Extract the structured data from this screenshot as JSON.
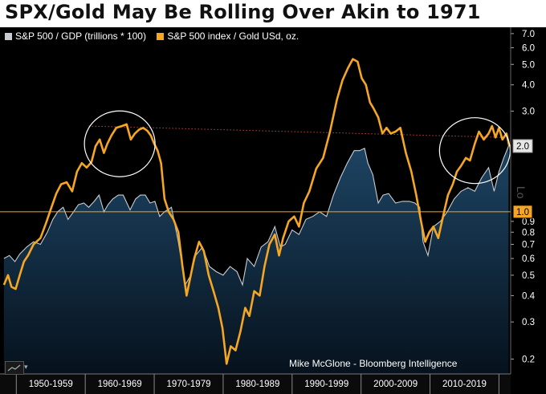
{
  "header": {
    "title": "SPX/Gold May Be Rolling Over Akin to 1971"
  },
  "watermark": "Mike McGlone - Bloomberg Intelligence",
  "side_label": "Lo",
  "icons": {
    "chart_type": "line-chart-icon",
    "dropdown": "chevron-down-icon",
    "caret_glyph": "▾"
  },
  "colors": {
    "background": "#000000",
    "area_top": "#1d4463",
    "area_bottom": "#06121d",
    "gold_line": "#f5a623",
    "gdp_line": "#c8ccd0",
    "reference_line": "#f5a623",
    "trend_line": "#c0453c",
    "circle": "#ffffff"
  },
  "chart_data": {
    "type": "line",
    "title": "SPX/Gold May Be Rolling Over Akin to 1971",
    "scale": "log",
    "ylim": [
      0.17,
      7.5
    ],
    "xlim": [
      1947.6,
      2021.2
    ],
    "y_ticks": [
      "7.0",
      "6.0",
      "5.0",
      "4.0",
      "3.0",
      "2.0",
      "1.0",
      "0.9",
      "0.8",
      "0.7",
      "0.6",
      "0.5",
      "0.4",
      "0.3",
      "0.2"
    ],
    "y_tick_values": [
      7,
      6,
      5,
      4,
      3,
      2,
      1,
      0.9,
      0.8,
      0.7,
      0.6,
      0.5,
      0.4,
      0.3,
      0.2
    ],
    "x_labels": [
      "1950-1959",
      "1960-1969",
      "1970-1979",
      "1980-1989",
      "1990-1999",
      "2000-2009",
      "2010-2019"
    ],
    "x_label_centers": [
      1954.5,
      1964.5,
      1974.5,
      1984.5,
      1994.5,
      2004.5,
      2014.5
    ],
    "x_dividers": [
      1949.5,
      1959.5,
      1969.5,
      1979.5,
      1989.5,
      1999.5,
      2009.5,
      2019.5
    ],
    "legend_position": "top-left",
    "grid": false,
    "last_value_labels": {
      "gold": "2.0",
      "reference": "1.0"
    },
    "reference_line": {
      "value": 1.0
    },
    "trend_line": {
      "x": [
        1960,
        2020.5
      ],
      "y": [
        2.55,
        2.25
      ]
    },
    "circles": [
      {
        "x": 1964.5,
        "y": 2.1
      },
      {
        "x": 2016.0,
        "y": 1.95
      }
    ],
    "series": [
      {
        "name": "S&P 500 / GDP (trillions * 100)",
        "style": "area",
        "x": [
          1947.7,
          1948.5,
          1949.3,
          1950.0,
          1951.0,
          1952.0,
          1953.0,
          1954.0,
          1954.8,
          1955.5,
          1956.3,
          1957.0,
          1957.8,
          1958.5,
          1959.3,
          1960.0,
          1960.8,
          1961.5,
          1962.2,
          1962.8,
          1963.5,
          1964.3,
          1965.0,
          1966.0,
          1966.8,
          1967.5,
          1968.2,
          1968.9,
          1969.6,
          1970.3,
          1971.0,
          1972.0,
          1973.0,
          1974.0,
          1974.8,
          1975.5,
          1976.5,
          1977.5,
          1978.5,
          1979.5,
          1980.5,
          1981.5,
          1982.3,
          1983.0,
          1984.0,
          1985.0,
          1986.0,
          1987.0,
          1987.8,
          1988.5,
          1989.5,
          1990.5,
          1991.5,
          1992.5,
          1993.5,
          1994.5,
          1995.5,
          1996.5,
          1997.5,
          1998.5,
          1999.3,
          2000.0,
          2000.5,
          2001.2,
          2002.0,
          2002.7,
          2003.5,
          2004.5,
          2005.5,
          2006.5,
          2007.3,
          2008.0,
          2008.5,
          2009.2,
          2010.0,
          2011.0,
          2012.0,
          2013.0,
          2014.0,
          2015.0,
          2016.0,
          2017.0,
          2018.0,
          2018.8,
          2019.5,
          2020.2,
          2020.9
        ],
        "values": [
          0.6,
          0.62,
          0.58,
          0.63,
          0.68,
          0.72,
          0.7,
          0.8,
          0.92,
          1.0,
          1.05,
          0.92,
          1.0,
          1.08,
          1.1,
          1.05,
          1.12,
          1.2,
          1.0,
          1.08,
          1.15,
          1.2,
          1.2,
          1.02,
          1.15,
          1.2,
          1.2,
          1.1,
          1.12,
          0.95,
          1.0,
          1.05,
          0.72,
          0.45,
          0.5,
          0.62,
          0.68,
          0.55,
          0.52,
          0.5,
          0.55,
          0.52,
          0.45,
          0.6,
          0.55,
          0.68,
          0.72,
          0.85,
          0.68,
          0.7,
          0.82,
          0.78,
          0.92,
          0.95,
          1.0,
          0.95,
          1.2,
          1.45,
          1.7,
          1.95,
          1.95,
          2.0,
          1.7,
          1.5,
          1.1,
          1.2,
          1.22,
          1.1,
          1.12,
          1.12,
          1.1,
          1.05,
          0.72,
          0.62,
          0.85,
          0.9,
          1.0,
          1.15,
          1.25,
          1.3,
          1.25,
          1.45,
          1.62,
          1.25,
          1.55,
          1.8,
          2.05
        ]
      },
      {
        "name": "S&P 500 index / Gold USd, oz.",
        "style": "line",
        "x": [
          1947.7,
          1948.3,
          1948.8,
          1949.4,
          1950.0,
          1950.6,
          1951.2,
          1952.0,
          1953.0,
          1953.8,
          1954.6,
          1955.3,
          1956.0,
          1956.8,
          1957.6,
          1958.3,
          1959.0,
          1959.7,
          1960.4,
          1961.0,
          1961.6,
          1962.2,
          1962.7,
          1963.3,
          1964.0,
          1964.8,
          1965.5,
          1966.1,
          1966.7,
          1967.3,
          1967.9,
          1968.5,
          1969.0,
          1969.5,
          1970.0,
          1970.5,
          1971.0,
          1971.6,
          1972.3,
          1973.0,
          1973.6,
          1974.2,
          1974.8,
          1975.3,
          1976.0,
          1976.7,
          1977.4,
          1978.1,
          1978.8,
          1979.4,
          1980.0,
          1980.6,
          1981.3,
          1982.0,
          1982.7,
          1983.3,
          1984.0,
          1984.8,
          1985.5,
          1986.2,
          1987.0,
          1987.6,
          1988.2,
          1989.0,
          1989.8,
          1990.5,
          1991.2,
          1992.0,
          1993.0,
          1994.0,
          1995.0,
          1996.0,
          1996.8,
          1997.6,
          1998.3,
          1999.0,
          1999.6,
          2000.2,
          2000.8,
          2001.3,
          2002.0,
          2002.6,
          2003.2,
          2003.8,
          2004.5,
          2005.2,
          2006.0,
          2006.8,
          2007.5,
          2008.2,
          2008.8,
          2009.4,
          2010.0,
          2010.7,
          2011.4,
          2012.1,
          2012.8,
          2013.4,
          2014.0,
          2014.7,
          2015.3,
          2016.0,
          2016.6,
          2017.3,
          2018.0,
          2018.5,
          2019.0,
          2019.5,
          2020.0,
          2020.6,
          2021.0
        ],
        "values": [
          0.45,
          0.5,
          0.44,
          0.43,
          0.5,
          0.58,
          0.62,
          0.7,
          0.75,
          0.88,
          1.05,
          1.22,
          1.35,
          1.38,
          1.25,
          1.55,
          1.7,
          1.62,
          1.72,
          2.05,
          2.2,
          1.9,
          2.1,
          2.3,
          2.5,
          2.55,
          2.6,
          2.2,
          2.35,
          2.45,
          2.5,
          2.42,
          2.3,
          2.1,
          1.95,
          1.7,
          1.15,
          1.0,
          0.92,
          0.8,
          0.55,
          0.4,
          0.5,
          0.6,
          0.72,
          0.65,
          0.5,
          0.42,
          0.35,
          0.28,
          0.19,
          0.23,
          0.22,
          0.27,
          0.35,
          0.32,
          0.42,
          0.4,
          0.55,
          0.7,
          0.78,
          0.62,
          0.75,
          0.9,
          0.95,
          0.85,
          1.1,
          1.25,
          1.6,
          1.8,
          2.4,
          3.4,
          4.2,
          4.8,
          5.3,
          5.15,
          4.3,
          4.0,
          3.3,
          3.1,
          2.8,
          2.35,
          2.5,
          2.35,
          2.4,
          2.5,
          1.9,
          1.55,
          1.2,
          0.9,
          0.72,
          0.8,
          0.85,
          0.75,
          0.95,
          1.2,
          1.35,
          1.55,
          1.65,
          1.8,
          1.75,
          2.1,
          2.4,
          2.2,
          2.35,
          2.55,
          2.25,
          2.5,
          2.2,
          2.35,
          2.05
        ]
      }
    ]
  }
}
